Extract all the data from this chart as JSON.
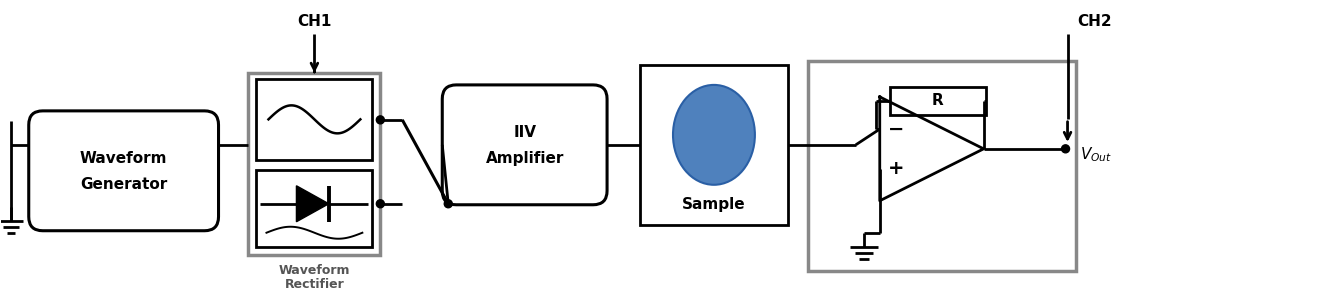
{
  "fig_width": 13.37,
  "fig_height": 2.93,
  "bg_color": "#ffffff",
  "line_color": "#000000",
  "gray_color": "#888888",
  "blue_color": "#4F81BD",
  "component_labels": {
    "waveform_gen": [
      "Waveform",
      "Generator"
    ],
    "hv_amp": [
      "IIV",
      "Amplifier"
    ],
    "sample": "Sample",
    "rectifier": [
      "Waveform",
      "Rectifier"
    ],
    "R": "R",
    "ch1": "CH1",
    "ch2": "CH2",
    "vout": "V_{Out}"
  }
}
